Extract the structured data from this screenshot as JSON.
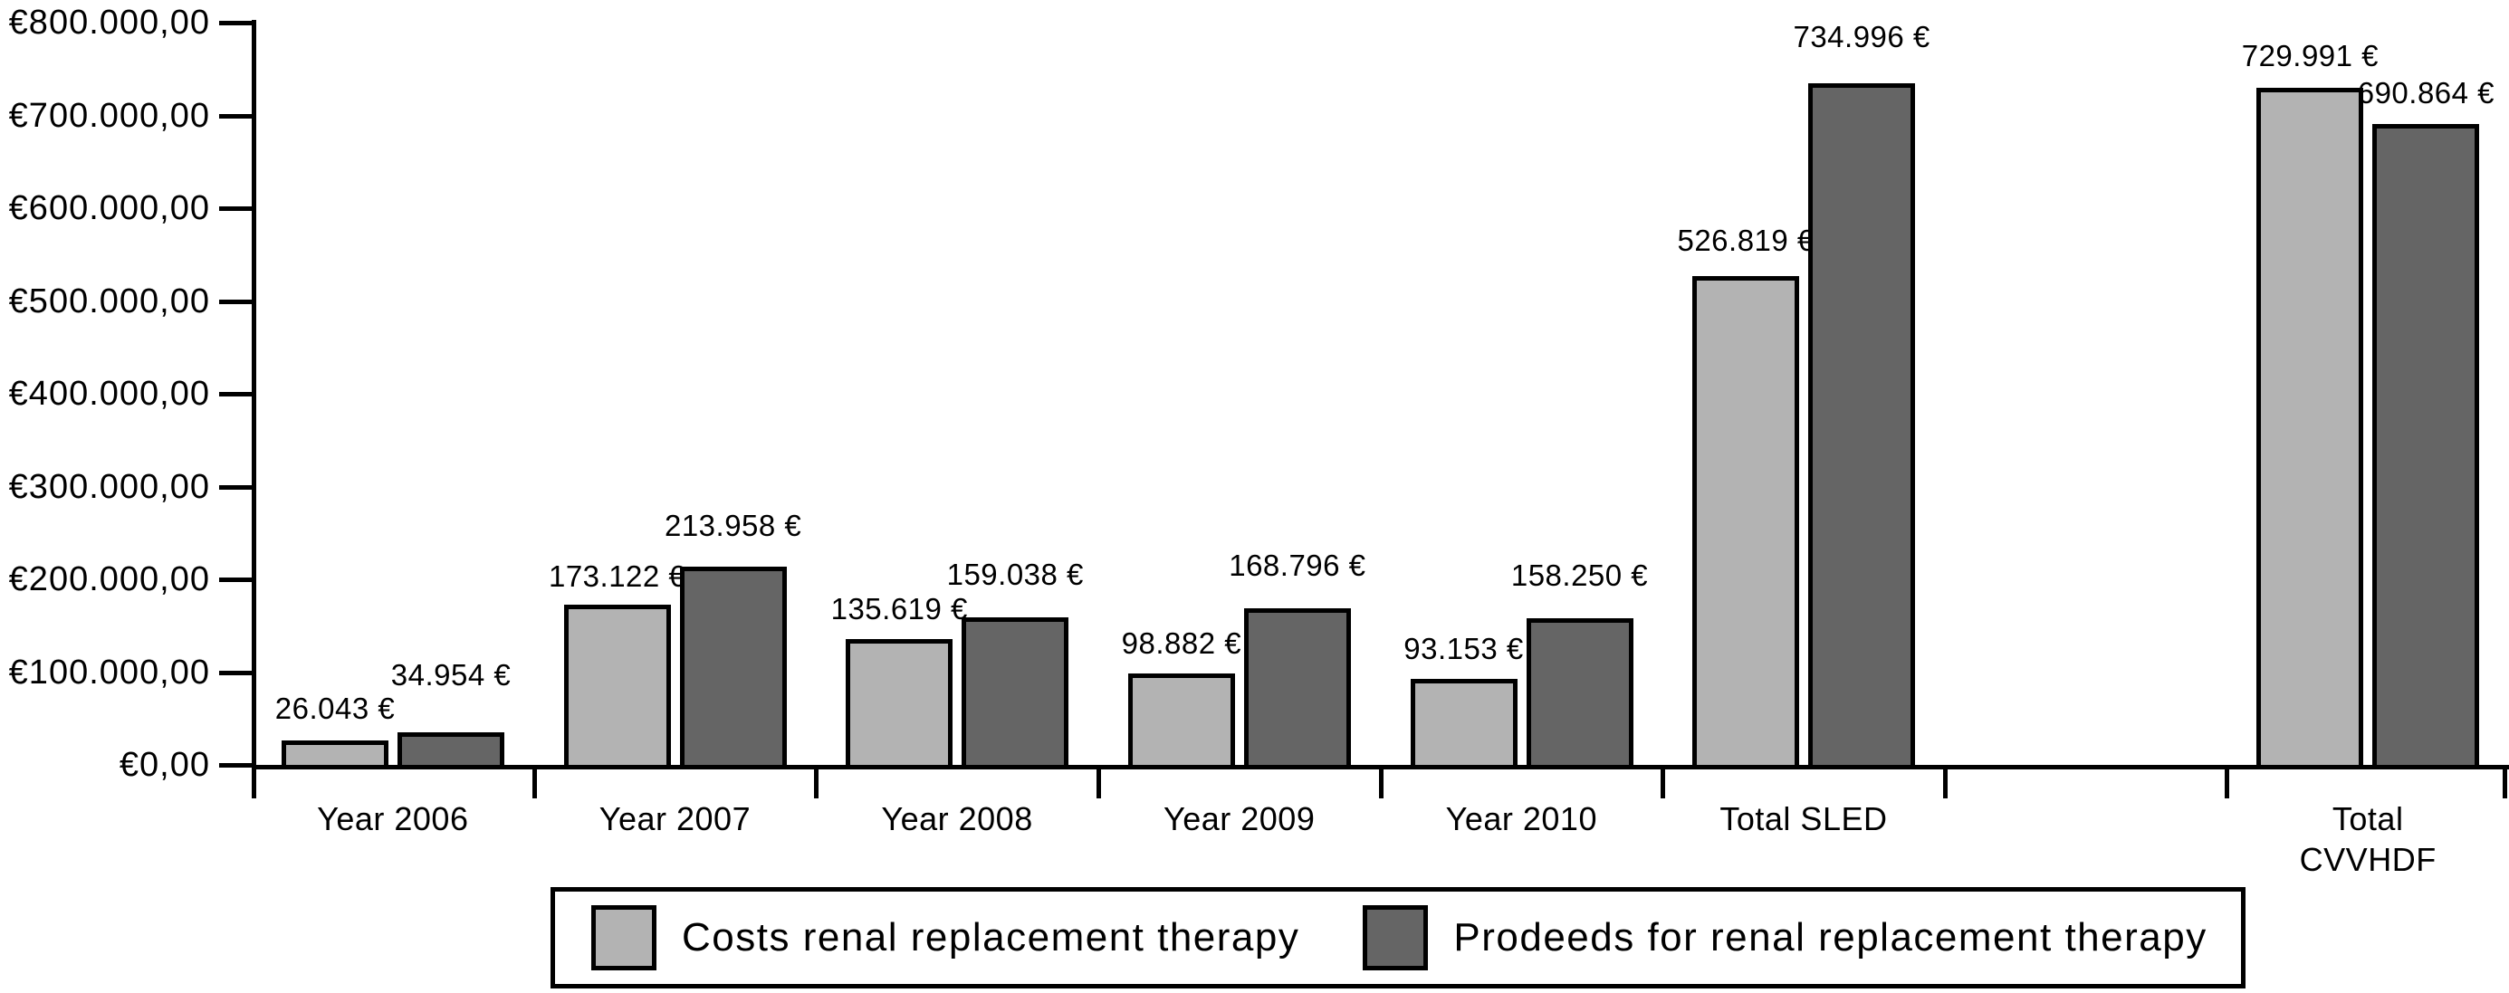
{
  "chart_data": {
    "type": "bar",
    "title": "",
    "xlabel": "",
    "ylabel": "",
    "grid": false,
    "background_color": "#ffffff",
    "axis_color": "#000000",
    "categories": [
      "Year 2006",
      "Year 2007",
      "Year 2008",
      "Year 2009",
      "Year 2010",
      "Total SLED",
      "",
      "Total\nCVVHDF"
    ],
    "series": [
      {
        "name": "Costs renal replacement therapy",
        "color": "#b3b3b3",
        "values": [
          26043,
          173122,
          135619,
          98882,
          93153,
          526819,
          null,
          729991
        ],
        "labels": [
          "26.043 €",
          "173.122 €",
          "135.619 €",
          "98.882 €",
          "93.153 €",
          "526.819 €",
          null,
          "729.991 €"
        ]
      },
      {
        "name": "Prodeeds for renal replacement therapy",
        "color": "#656565",
        "values": [
          34954,
          213958,
          159038,
          168796,
          158250,
          734996,
          null,
          690864
        ],
        "labels": [
          "34.954 €",
          "213.958 €",
          "159.038 €",
          "168.796 €",
          "158.250 €",
          "734.996 €",
          null,
          "690.864 €"
        ]
      }
    ],
    "y_axis": {
      "min": 0,
      "max": 800000,
      "tick_interval": 100000,
      "tick_labels": [
        {
          "value": 0,
          "label": "€0,00"
        },
        {
          "value": 100000,
          "label": "€100.000,00"
        },
        {
          "value": 200000,
          "label": "€200.000,00"
        },
        {
          "value": 300000,
          "label": "€300.000,00"
        },
        {
          "value": 400000,
          "label": "€400.000,00"
        },
        {
          "value": 500000,
          "label": "€500.000,00"
        },
        {
          "value": 600000,
          "label": "€600.000,00"
        },
        {
          "value": 700000,
          "label": "€700.000,00"
        },
        {
          "value": 800000,
          "label": "€800.000,00"
        }
      ]
    },
    "legend_position": "bottom"
  }
}
